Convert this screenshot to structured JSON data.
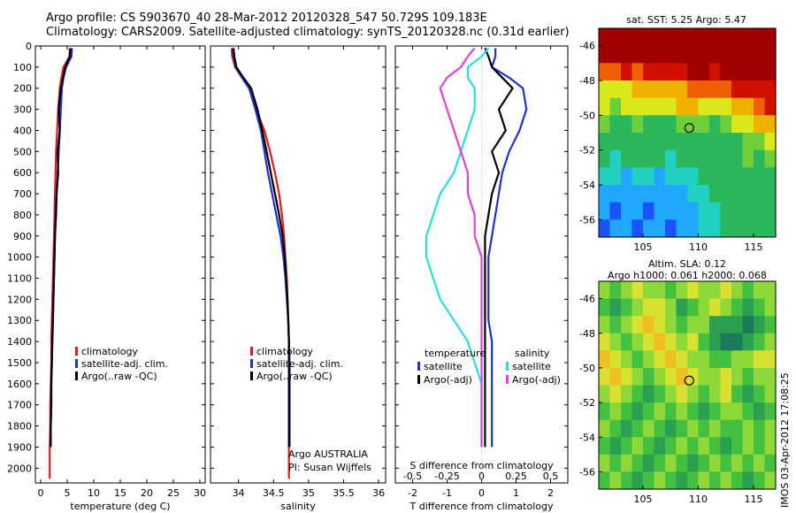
{
  "title": {
    "line1": "Argo profile: CS 5903670_40 28-Mar-2012 20120328_547 50.729S 109.183E",
    "line2": "Climatology: CARS2009. Satellite-adjusted climatology: synTS_20120328.nc (0.31d earlier)"
  },
  "timestamp": "IMOS 03-Apr-2012 17:08:25",
  "colors": {
    "red": "#e41a1c",
    "blue": "#1f2fd6",
    "black": "#000000",
    "cyan": "#22e0e0",
    "magenta": "#e040e0"
  },
  "chart_data": [
    {
      "type": "line",
      "id": "temperature",
      "xlabel": "temperature (deg C)",
      "ylabel": "",
      "xlim": [
        -1,
        31
      ],
      "ylim": [
        2070,
        0
      ],
      "xticks": [
        0,
        5,
        10,
        15,
        20,
        25,
        30
      ],
      "yticks": [
        0,
        100,
        200,
        300,
        400,
        500,
        600,
        700,
        800,
        900,
        1000,
        1100,
        1200,
        1300,
        1400,
        1500,
        1600,
        1700,
        1800,
        1900,
        2000
      ],
      "legend": {
        "position": "bottom-center",
        "entries": [
          "climatology",
          "satellite-adj. clim.",
          "Argo(..raw -QC)"
        ]
      },
      "series": [
        {
          "name": "climatology",
          "color": "red",
          "x": [
            5.5,
            5.4,
            4.3,
            3.9,
            3.6,
            3.3,
            3.1,
            2.9,
            2.8,
            2.7,
            2.6,
            2.5,
            2.4,
            2.3,
            2.2,
            2.1,
            2.0,
            2.0,
            1.9,
            1.8,
            1.8,
            1.7,
            1.7
          ],
          "y": [
            10,
            50,
            100,
            150,
            200,
            300,
            400,
            500,
            600,
            700,
            800,
            900,
            1000,
            1100,
            1200,
            1300,
            1400,
            1500,
            1600,
            1700,
            1800,
            1900,
            2050
          ]
        },
        {
          "name": "satellite-adj. clim.",
          "color": "blue",
          "x": [
            5.9,
            5.8,
            4.8,
            4.3,
            4.0,
            3.8,
            3.6,
            3.4,
            3.2,
            3.0,
            2.8,
            2.7,
            2.6,
            2.5,
            2.4,
            2.3,
            2.2,
            2.1,
            2.0,
            2.0,
            1.9,
            1.9
          ],
          "y": [
            10,
            50,
            100,
            150,
            200,
            300,
            400,
            500,
            600,
            700,
            800,
            900,
            1000,
            1100,
            1200,
            1300,
            1400,
            1500,
            1600,
            1700,
            1800,
            1900
          ]
        },
        {
          "name": "Argo(..raw -QC)",
          "color": "black",
          "x": [
            5.6,
            5.5,
            4.6,
            4.2,
            3.8,
            3.4,
            3.6,
            3.2,
            3.3,
            3.0,
            2.9,
            2.7,
            2.6,
            2.5,
            2.4,
            2.3,
            2.2,
            2.1,
            2.0,
            2.0,
            1.9,
            1.9
          ],
          "y": [
            10,
            50,
            100,
            150,
            200,
            300,
            400,
            500,
            600,
            700,
            800,
            900,
            1000,
            1100,
            1200,
            1300,
            1400,
            1500,
            1600,
            1700,
            1800,
            1900
          ]
        }
      ]
    },
    {
      "type": "line",
      "id": "salinity",
      "xlabel": "salinity",
      "ylabel": "",
      "xlim": [
        33.6,
        36.1
      ],
      "ylim": [
        2070,
        0
      ],
      "xticks": [
        34,
        34.5,
        35,
        35.5,
        36
      ],
      "xtick_labels": [
        "34",
        "34.5",
        "35",
        "35.5",
        "36"
      ],
      "legend": {
        "position": "bottom-center",
        "entries": [
          "climatology",
          "satellite-adj. clim.",
          "Argo(..raw -QC)"
        ]
      },
      "annotation": {
        "line1": "Argo AUSTRALIA",
        "line2": "PI: Susan Wijffels"
      },
      "series": [
        {
          "name": "climatology",
          "color": "red",
          "x": [
            33.9,
            33.91,
            33.95,
            34.05,
            34.15,
            34.25,
            34.37,
            34.45,
            34.52,
            34.58,
            34.62,
            34.65,
            34.67,
            34.69,
            34.7,
            34.71,
            34.72,
            34.72,
            34.72,
            34.72,
            34.72,
            34.72,
            34.72
          ],
          "y": [
            10,
            50,
            100,
            150,
            200,
            300,
            400,
            500,
            600,
            700,
            800,
            900,
            1000,
            1100,
            1200,
            1300,
            1400,
            1500,
            1600,
            1700,
            1800,
            1900,
            2050
          ]
        },
        {
          "name": "satellite-adj. clim.",
          "color": "blue",
          "x": [
            33.92,
            33.93,
            33.96,
            34.05,
            34.15,
            34.24,
            34.32,
            34.37,
            34.42,
            34.48,
            34.54,
            34.6,
            34.64,
            34.67,
            34.69,
            34.71,
            34.72,
            34.73,
            34.73,
            34.73,
            34.73,
            34.73
          ],
          "y": [
            10,
            50,
            100,
            150,
            200,
            300,
            400,
            500,
            600,
            700,
            800,
            900,
            1000,
            1100,
            1200,
            1300,
            1400,
            1500,
            1600,
            1700,
            1800,
            1900
          ]
        },
        {
          "name": "Argo(..raw -QC)",
          "color": "black",
          "x": [
            33.93,
            33.94,
            33.97,
            34.07,
            34.18,
            34.27,
            34.34,
            34.4,
            34.46,
            34.52,
            34.58,
            34.63,
            34.66,
            34.68,
            34.7,
            34.71,
            34.72,
            34.72,
            34.72,
            34.72,
            34.72,
            34.72
          ],
          "y": [
            10,
            50,
            100,
            150,
            200,
            300,
            400,
            500,
            600,
            700,
            800,
            900,
            1000,
            1100,
            1200,
            1300,
            1400,
            1500,
            1600,
            1700,
            1800,
            1900
          ]
        }
      ]
    },
    {
      "type": "line",
      "id": "difference",
      "xlabel": "T difference from climatology",
      "xlabel_top": "S difference from climatology",
      "xlim": [
        -2.5,
        2.5
      ],
      "ylim": [
        2070,
        0
      ],
      "xticks": [
        -2,
        -1,
        0,
        1,
        2
      ],
      "xticks_top": [
        -0.5,
        -0.25,
        0,
        0.25,
        0.5
      ],
      "xtick_labels_top": [
        "-0.5",
        "-0.25",
        "0",
        "0.25",
        "0.5"
      ],
      "legend": {
        "position": "bottom-center",
        "headers": [
          "temperature",
          "salinity"
        ],
        "entries": [
          "satellite",
          "Argo(-adj)",
          "satellite",
          "Argo(-adj)"
        ]
      },
      "series": [
        {
          "name": "satellite",
          "group": "temperature",
          "color": "blue",
          "x": [
            0.4,
            0.4,
            0.3,
            0.8,
            1.2,
            1.3,
            1.1,
            0.8,
            0.6,
            0.5,
            0.4,
            0.3,
            0.2,
            0.2,
            0.2,
            0.2,
            0.3,
            0.3,
            0.3,
            0.3,
            0.3,
            0.3
          ],
          "y": [
            10,
            50,
            100,
            150,
            200,
            300,
            400,
            500,
            600,
            700,
            800,
            900,
            1000,
            1100,
            1200,
            1300,
            1400,
            1500,
            1600,
            1700,
            1800,
            1900
          ]
        },
        {
          "name": "Argo(-adj)",
          "group": "temperature",
          "color": "black",
          "x": [
            0.1,
            0.2,
            0.3,
            0.6,
            0.9,
            0.5,
            0.7,
            0.3,
            0.5,
            0.3,
            0.2,
            0.1,
            0.1,
            0.1,
            0.1,
            0.1,
            0.1,
            0.1,
            0.1,
            0.1,
            0.1,
            0.1
          ],
          "y": [
            10,
            50,
            100,
            150,
            200,
            300,
            400,
            500,
            600,
            700,
            800,
            900,
            1000,
            1100,
            1200,
            1300,
            1400,
            1500,
            1600,
            1700,
            1800,
            1900
          ]
        },
        {
          "name": "satellite",
          "group": "salinity",
          "color": "cyan",
          "x": [
            0.05,
            0.0,
            -0.1,
            -0.1,
            -0.05,
            -0.05,
            -0.1,
            -0.15,
            -0.2,
            -0.3,
            -0.35,
            -0.4,
            -0.4,
            -0.35,
            -0.3,
            -0.2,
            -0.1,
            -0.05,
            0.0,
            0.0,
            0.0,
            0.0
          ],
          "y": [
            10,
            50,
            100,
            150,
            200,
            300,
            400,
            500,
            600,
            700,
            800,
            900,
            1000,
            1100,
            1200,
            1300,
            1400,
            1500,
            1600,
            1700,
            1800,
            1900
          ]
        },
        {
          "name": "Argo(-adj)",
          "group": "salinity",
          "color": "magenta",
          "x": [
            -0.05,
            -0.1,
            -0.15,
            -0.25,
            -0.3,
            -0.25,
            -0.2,
            -0.15,
            -0.1,
            -0.1,
            -0.05,
            -0.05,
            0.0,
            0.0,
            0.0,
            0.0,
            0.0,
            0.0,
            0.0,
            0.0,
            0.0,
            0.0
          ],
          "y": [
            10,
            50,
            100,
            150,
            200,
            300,
            400,
            500,
            600,
            700,
            800,
            900,
            1000,
            1100,
            1200,
            1300,
            1400,
            1500,
            1600,
            1700,
            1800,
            1900
          ]
        }
      ]
    },
    {
      "type": "heatmap",
      "id": "sst-map",
      "title": "sat. SST: 5.25 Argo: 5.47",
      "xlim": [
        101,
        117
      ],
      "ylim": [
        -57,
        -45
      ],
      "xticks": [
        105,
        110,
        115
      ],
      "yticks": [
        -46,
        -48,
        -50,
        -52,
        -54,
        -56
      ],
      "marker": {
        "lon": 109.183,
        "lat": -50.729
      },
      "colormap": [
        "#1a52ff",
        "#1fa8ff",
        "#20d0c0",
        "#2ab85a",
        "#6fcf3a",
        "#d8e81a",
        "#f0b000",
        "#f06000",
        "#d01000",
        "#a00000"
      ],
      "rows_lat": [
        -45.5,
        -46.5,
        -47.5,
        -48.5,
        -49.5,
        -50.5,
        -51.5,
        -52.5,
        -53.5,
        -54.5,
        -55.5,
        -56.5
      ],
      "levels": [
        [
          9,
          9,
          9,
          9,
          9,
          9,
          9,
          9,
          9,
          9,
          9,
          9,
          9,
          9,
          9,
          9
        ],
        [
          9,
          9,
          9,
          9,
          9,
          9,
          9,
          9,
          9,
          9,
          9,
          9,
          9,
          9,
          9,
          9
        ],
        [
          7,
          7,
          8,
          7,
          8,
          8,
          8,
          8,
          9,
          9,
          8,
          9,
          9,
          9,
          9,
          9
        ],
        [
          5,
          5,
          5,
          6,
          6,
          6,
          6,
          6,
          7,
          7,
          7,
          7,
          8,
          8,
          8,
          8
        ],
        [
          5,
          4,
          5,
          5,
          5,
          5,
          5,
          6,
          6,
          5,
          5,
          5,
          6,
          6,
          7,
          8
        ],
        [
          4,
          3,
          3,
          4,
          3,
          3,
          3,
          4,
          4,
          4,
          3,
          4,
          5,
          5,
          6,
          6
        ],
        [
          3,
          3,
          3,
          3,
          3,
          3,
          3,
          3,
          3,
          3,
          3,
          3,
          3,
          4,
          4,
          5
        ],
        [
          3,
          2,
          3,
          3,
          3,
          3,
          2,
          3,
          3,
          3,
          3,
          3,
          3,
          4,
          3,
          4
        ],
        [
          2,
          2,
          1,
          2,
          2,
          1,
          2,
          2,
          2,
          3,
          3,
          3,
          3,
          3,
          3,
          3
        ],
        [
          1,
          1,
          1,
          1,
          1,
          1,
          1,
          1,
          2,
          2,
          3,
          3,
          3,
          3,
          3,
          3
        ],
        [
          1,
          0,
          1,
          1,
          0,
          1,
          1,
          1,
          1,
          2,
          2,
          3,
          3,
          3,
          3,
          3
        ],
        [
          0,
          1,
          1,
          0,
          1,
          1,
          0,
          1,
          1,
          2,
          2,
          3,
          3,
          3,
          3,
          3
        ]
      ]
    },
    {
      "type": "heatmap",
      "id": "sla-map",
      "title": "Altim. SLA: 0.12",
      "subtitle": "Argo h1000: 0.061 h2000: 0.068",
      "xlim": [
        101,
        117
      ],
      "ylim": [
        -57,
        -45
      ],
      "xticks": [
        105,
        110,
        115
      ],
      "yticks": [
        -46,
        -48,
        -50,
        -52,
        -54,
        -56
      ],
      "marker": {
        "lon": 109.183,
        "lat": -50.729
      },
      "colormap": [
        "#1a7a5a",
        "#2aa050",
        "#44c040",
        "#8ed83a",
        "#d8e030",
        "#f0c020"
      ],
      "rows_lat": [
        -45.5,
        -46.5,
        -47.5,
        -48.5,
        -49.5,
        -50.5,
        -51.5,
        -52.5,
        -53.5,
        -54.5,
        -55.5,
        -56.5
      ],
      "levels": [
        [
          3,
          2,
          3,
          4,
          3,
          3,
          2,
          3,
          4,
          3,
          3,
          4,
          3,
          2,
          3,
          3
        ],
        [
          2,
          1,
          2,
          3,
          4,
          4,
          3,
          1,
          2,
          3,
          4,
          3,
          2,
          1,
          2,
          3
        ],
        [
          3,
          2,
          3,
          4,
          5,
          4,
          3,
          2,
          3,
          3,
          1,
          1,
          1,
          0,
          1,
          2
        ],
        [
          4,
          3,
          2,
          3,
          4,
          5,
          4,
          3,
          4,
          2,
          1,
          0,
          0,
          1,
          2,
          3
        ],
        [
          5,
          4,
          3,
          2,
          3,
          4,
          5,
          4,
          3,
          3,
          2,
          2,
          3,
          3,
          4,
          4
        ],
        [
          4,
          5,
          4,
          3,
          2,
          3,
          4,
          5,
          4,
          3,
          3,
          4,
          3,
          2,
          3,
          3
        ],
        [
          3,
          4,
          3,
          2,
          1,
          2,
          3,
          4,
          3,
          2,
          3,
          4,
          2,
          1,
          2,
          3
        ],
        [
          2,
          3,
          2,
          1,
          2,
          3,
          2,
          3,
          2,
          1,
          2,
          3,
          3,
          2,
          1,
          2
        ],
        [
          3,
          2,
          1,
          2,
          3,
          2,
          1,
          2,
          3,
          2,
          3,
          2,
          2,
          3,
          2,
          3
        ],
        [
          2,
          1,
          2,
          3,
          2,
          1,
          2,
          3,
          2,
          3,
          2,
          1,
          2,
          3,
          2,
          3
        ],
        [
          3,
          2,
          3,
          2,
          1,
          2,
          3,
          2,
          1,
          2,
          3,
          2,
          3,
          2,
          3,
          2
        ],
        [
          2,
          3,
          2,
          1,
          2,
          3,
          2,
          1,
          2,
          3,
          2,
          3,
          2,
          1,
          2,
          3
        ]
      ]
    }
  ]
}
